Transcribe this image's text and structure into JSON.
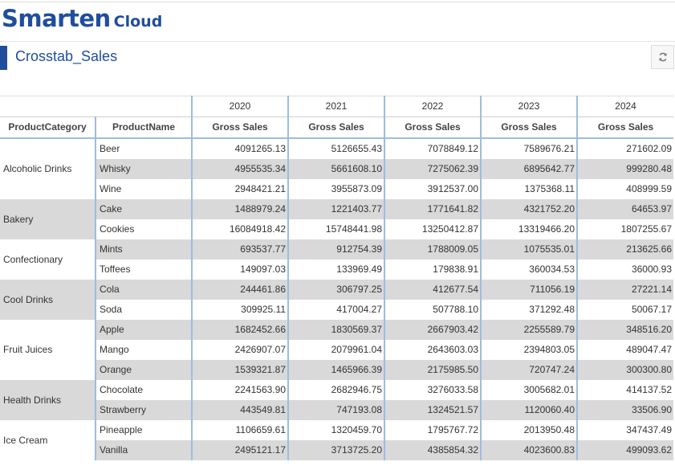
{
  "brand": {
    "name": "Smarten",
    "suffix": "Cloud"
  },
  "page": {
    "title": "Crosstab_Sales"
  },
  "toolbar": {
    "refresh_icon": "refresh-icon"
  },
  "crosstab": {
    "years": [
      "2020",
      "2021",
      "2022",
      "2023",
      "2024"
    ],
    "row_headers": [
      "ProductCategory",
      "ProductName"
    ],
    "measure": "Gross Sales",
    "groups": [
      {
        "category": "Alcoholic Drinks",
        "rows": [
          {
            "product": "Beer",
            "values": [
              "4091265.13",
              "5126655.43",
              "7078849.12",
              "7589676.21",
              "271602.09"
            ]
          },
          {
            "product": "Whisky",
            "values": [
              "4955535.34",
              "5661608.10",
              "7275062.39",
              "6895642.77",
              "999280.48"
            ]
          },
          {
            "product": "Wine",
            "values": [
              "2948421.21",
              "3955873.09",
              "3912537.00",
              "1375368.11",
              "408999.59"
            ]
          }
        ]
      },
      {
        "category": "Bakery",
        "rows": [
          {
            "product": "Cake",
            "values": [
              "1488979.24",
              "1221403.77",
              "1771641.82",
              "4321752.20",
              "64653.97"
            ]
          },
          {
            "product": "Cookies",
            "values": [
              "16084918.42",
              "15748441.98",
              "13250412.87",
              "13319466.20",
              "1807255.67"
            ]
          }
        ]
      },
      {
        "category": "Confectionary",
        "rows": [
          {
            "product": "Mints",
            "values": [
              "693537.77",
              "912754.39",
              "1788009.05",
              "1075535.01",
              "213625.66"
            ]
          },
          {
            "product": "Toffees",
            "values": [
              "149097.03",
              "133969.49",
              "179838.91",
              "360034.53",
              "36000.93"
            ]
          }
        ]
      },
      {
        "category": "Cool Drinks",
        "rows": [
          {
            "product": "Cola",
            "values": [
              "244461.86",
              "306797.25",
              "412677.54",
              "711056.19",
              "27221.14"
            ]
          },
          {
            "product": "Soda",
            "values": [
              "309925.11",
              "417004.27",
              "507788.10",
              "371292.48",
              "50067.17"
            ]
          }
        ]
      },
      {
        "category": "Fruit Juices",
        "rows": [
          {
            "product": "Apple",
            "values": [
              "1682452.66",
              "1830569.37",
              "2667903.42",
              "2255589.79",
              "348516.20"
            ]
          },
          {
            "product": "Mango",
            "values": [
              "2426907.07",
              "2079961.04",
              "2643603.03",
              "2394803.05",
              "489047.47"
            ]
          },
          {
            "product": "Orange",
            "values": [
              "1539321.87",
              "1465966.39",
              "2175985.50",
              "720747.24",
              "300300.80"
            ]
          }
        ]
      },
      {
        "category": "Health Drinks",
        "rows": [
          {
            "product": "Chocolate",
            "values": [
              "2241563.90",
              "2682946.75",
              "3276033.58",
              "3005682.01",
              "414137.52"
            ]
          },
          {
            "product": "Strawberry",
            "values": [
              "443549.81",
              "747193.08",
              "1324521.57",
              "1120060.40",
              "33506.90"
            ]
          }
        ]
      },
      {
        "category": "Ice Cream",
        "rows": [
          {
            "product": "Pineapple",
            "values": [
              "1106659.61",
              "1320459.70",
              "1795767.72",
              "2013950.48",
              "347437.49"
            ]
          },
          {
            "product": "Vanilla",
            "values": [
              "2495121.17",
              "3713725.20",
              "4385854.32",
              "4023600.83",
              "499093.62"
            ]
          }
        ]
      }
    ]
  }
}
